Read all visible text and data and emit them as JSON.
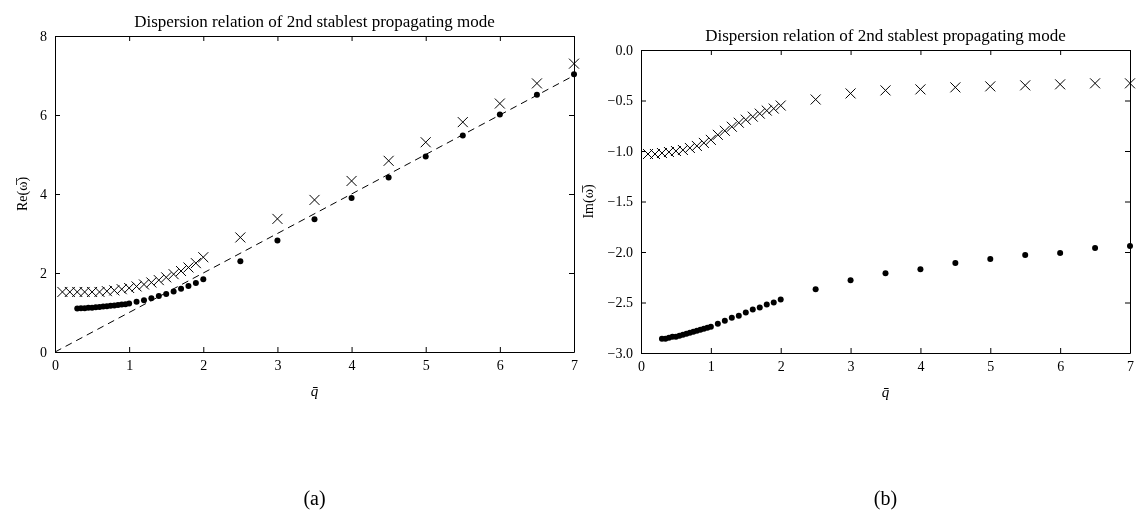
{
  "chart_data": [
    {
      "type": "scatter",
      "title": "Dispersion relation of 2nd stablest propagating mode",
      "xlabel": "q̄",
      "ylabel": "Re(ω̅)",
      "xlim": [
        0,
        7
      ],
      "ylim": [
        0,
        8
      ],
      "xticks": [
        0,
        1,
        2,
        3,
        4,
        5,
        6,
        7
      ],
      "yticks": [
        0,
        2,
        4,
        6,
        8
      ],
      "grid": false,
      "annotations": [
        "(a)"
      ],
      "series": [
        {
          "type": "scatter",
          "marker": "cross",
          "color": "#000000",
          "x": [
            0.1,
            0.2,
            0.3,
            0.4,
            0.5,
            0.6,
            0.7,
            0.8,
            0.9,
            1.0,
            1.1,
            1.2,
            1.3,
            1.4,
            1.5,
            1.6,
            1.7,
            1.8,
            1.9,
            2.0,
            2.5,
            3,
            3.5,
            4,
            4.5,
            5,
            5.5,
            6,
            6.5,
            7
          ],
          "values": [
            1.52,
            1.52,
            1.52,
            1.52,
            1.52,
            1.52,
            1.54,
            1.56,
            1.59,
            1.62,
            1.66,
            1.71,
            1.76,
            1.82,
            1.89,
            1.97,
            2.05,
            2.14,
            2.25,
            2.4,
            2.9,
            3.37,
            3.85,
            4.33,
            4.84,
            5.31,
            5.82,
            6.29,
            6.8,
            7.3
          ]
        },
        {
          "type": "scatter",
          "marker": "circle",
          "color": "#000000",
          "x": [
            0.3,
            0.35,
            0.4,
            0.45,
            0.5,
            0.55,
            0.6,
            0.65,
            0.7,
            0.75,
            0.8,
            0.85,
            0.9,
            0.95,
            1.0,
            1.1,
            1.2,
            1.3,
            1.4,
            1.5,
            1.6,
            1.7,
            1.8,
            1.9,
            2.0,
            2.5,
            3,
            3.5,
            4,
            4.5,
            5,
            5.5,
            6,
            6.5,
            7
          ],
          "values": [
            1.1,
            1.11,
            1.11,
            1.12,
            1.12,
            1.13,
            1.14,
            1.15,
            1.16,
            1.17,
            1.18,
            1.19,
            1.2,
            1.21,
            1.23,
            1.27,
            1.31,
            1.36,
            1.42,
            1.47,
            1.53,
            1.6,
            1.67,
            1.75,
            1.84,
            2.3,
            2.82,
            3.36,
            3.9,
            4.42,
            4.95,
            5.48,
            6.01,
            6.51,
            7.03
          ]
        },
        {
          "type": "line",
          "marker": "none",
          "line_style": "dashed",
          "color": "#000000",
          "x": [
            0,
            7
          ],
          "values": [
            0,
            7
          ]
        }
      ]
    },
    {
      "type": "scatter",
      "title": "Dispersion relation of 2nd stablest propagating mode",
      "xlabel": "q̄",
      "ylabel": "Im(ω̅)",
      "xlim": [
        0,
        7
      ],
      "ylim": [
        -3,
        0
      ],
      "xticks": [
        0,
        1,
        2,
        3,
        4,
        5,
        6,
        7
      ],
      "yticks": [
        {
          "value": -3,
          "label": "−3.0"
        },
        {
          "value": -2.5,
          "label": "−2.5"
        },
        {
          "value": -2,
          "label": "−2.0"
        },
        {
          "value": -1.5,
          "label": "−1.5"
        },
        {
          "value": -1,
          "label": "−1.0"
        },
        {
          "value": -0.5,
          "label": "−0.5"
        },
        {
          "value": 0,
          "label": "0.0"
        }
      ],
      "grid": false,
      "annotations": [
        "(b)"
      ],
      "series": [
        {
          "type": "scatter",
          "marker": "cross",
          "color": "#000000",
          "x": [
            0.1,
            0.2,
            0.3,
            0.4,
            0.5,
            0.6,
            0.7,
            0.8,
            0.9,
            1.0,
            1.1,
            1.2,
            1.3,
            1.4,
            1.5,
            1.6,
            1.7,
            1.8,
            1.9,
            2.0,
            2.5,
            3,
            3.5,
            4,
            4.5,
            5,
            5.5,
            6,
            6.5,
            7
          ],
          "values": [
            -1.03,
            -1.03,
            -1.02,
            -1.01,
            -1.0,
            -0.99,
            -0.97,
            -0.95,
            -0.92,
            -0.89,
            -0.84,
            -0.8,
            -0.76,
            -0.72,
            -0.69,
            -0.66,
            -0.63,
            -0.6,
            -0.58,
            -0.55,
            -0.49,
            -0.43,
            -0.4,
            -0.39,
            -0.37,
            -0.36,
            -0.35,
            -0.34,
            -0.33,
            -0.33
          ]
        },
        {
          "type": "scatter",
          "marker": "circle",
          "color": "#000000",
          "x": [
            0.3,
            0.35,
            0.4,
            0.45,
            0.5,
            0.55,
            0.6,
            0.65,
            0.7,
            0.75,
            0.8,
            0.85,
            0.9,
            0.95,
            1.0,
            1.1,
            1.2,
            1.3,
            1.4,
            1.5,
            1.6,
            1.7,
            1.8,
            1.9,
            2.0,
            2.5,
            3,
            3.5,
            4,
            4.5,
            5,
            5.5,
            6,
            6.5,
            7
          ],
          "values": [
            -2.86,
            -2.86,
            -2.85,
            -2.84,
            -2.84,
            -2.83,
            -2.82,
            -2.81,
            -2.8,
            -2.79,
            -2.78,
            -2.77,
            -2.76,
            -2.75,
            -2.74,
            -2.71,
            -2.68,
            -2.65,
            -2.63,
            -2.6,
            -2.57,
            -2.55,
            -2.52,
            -2.5,
            -2.47,
            -2.37,
            -2.28,
            -2.21,
            -2.17,
            -2.11,
            -2.07,
            -2.03,
            -2.01,
            -1.96,
            -1.94
          ]
        }
      ]
    }
  ]
}
